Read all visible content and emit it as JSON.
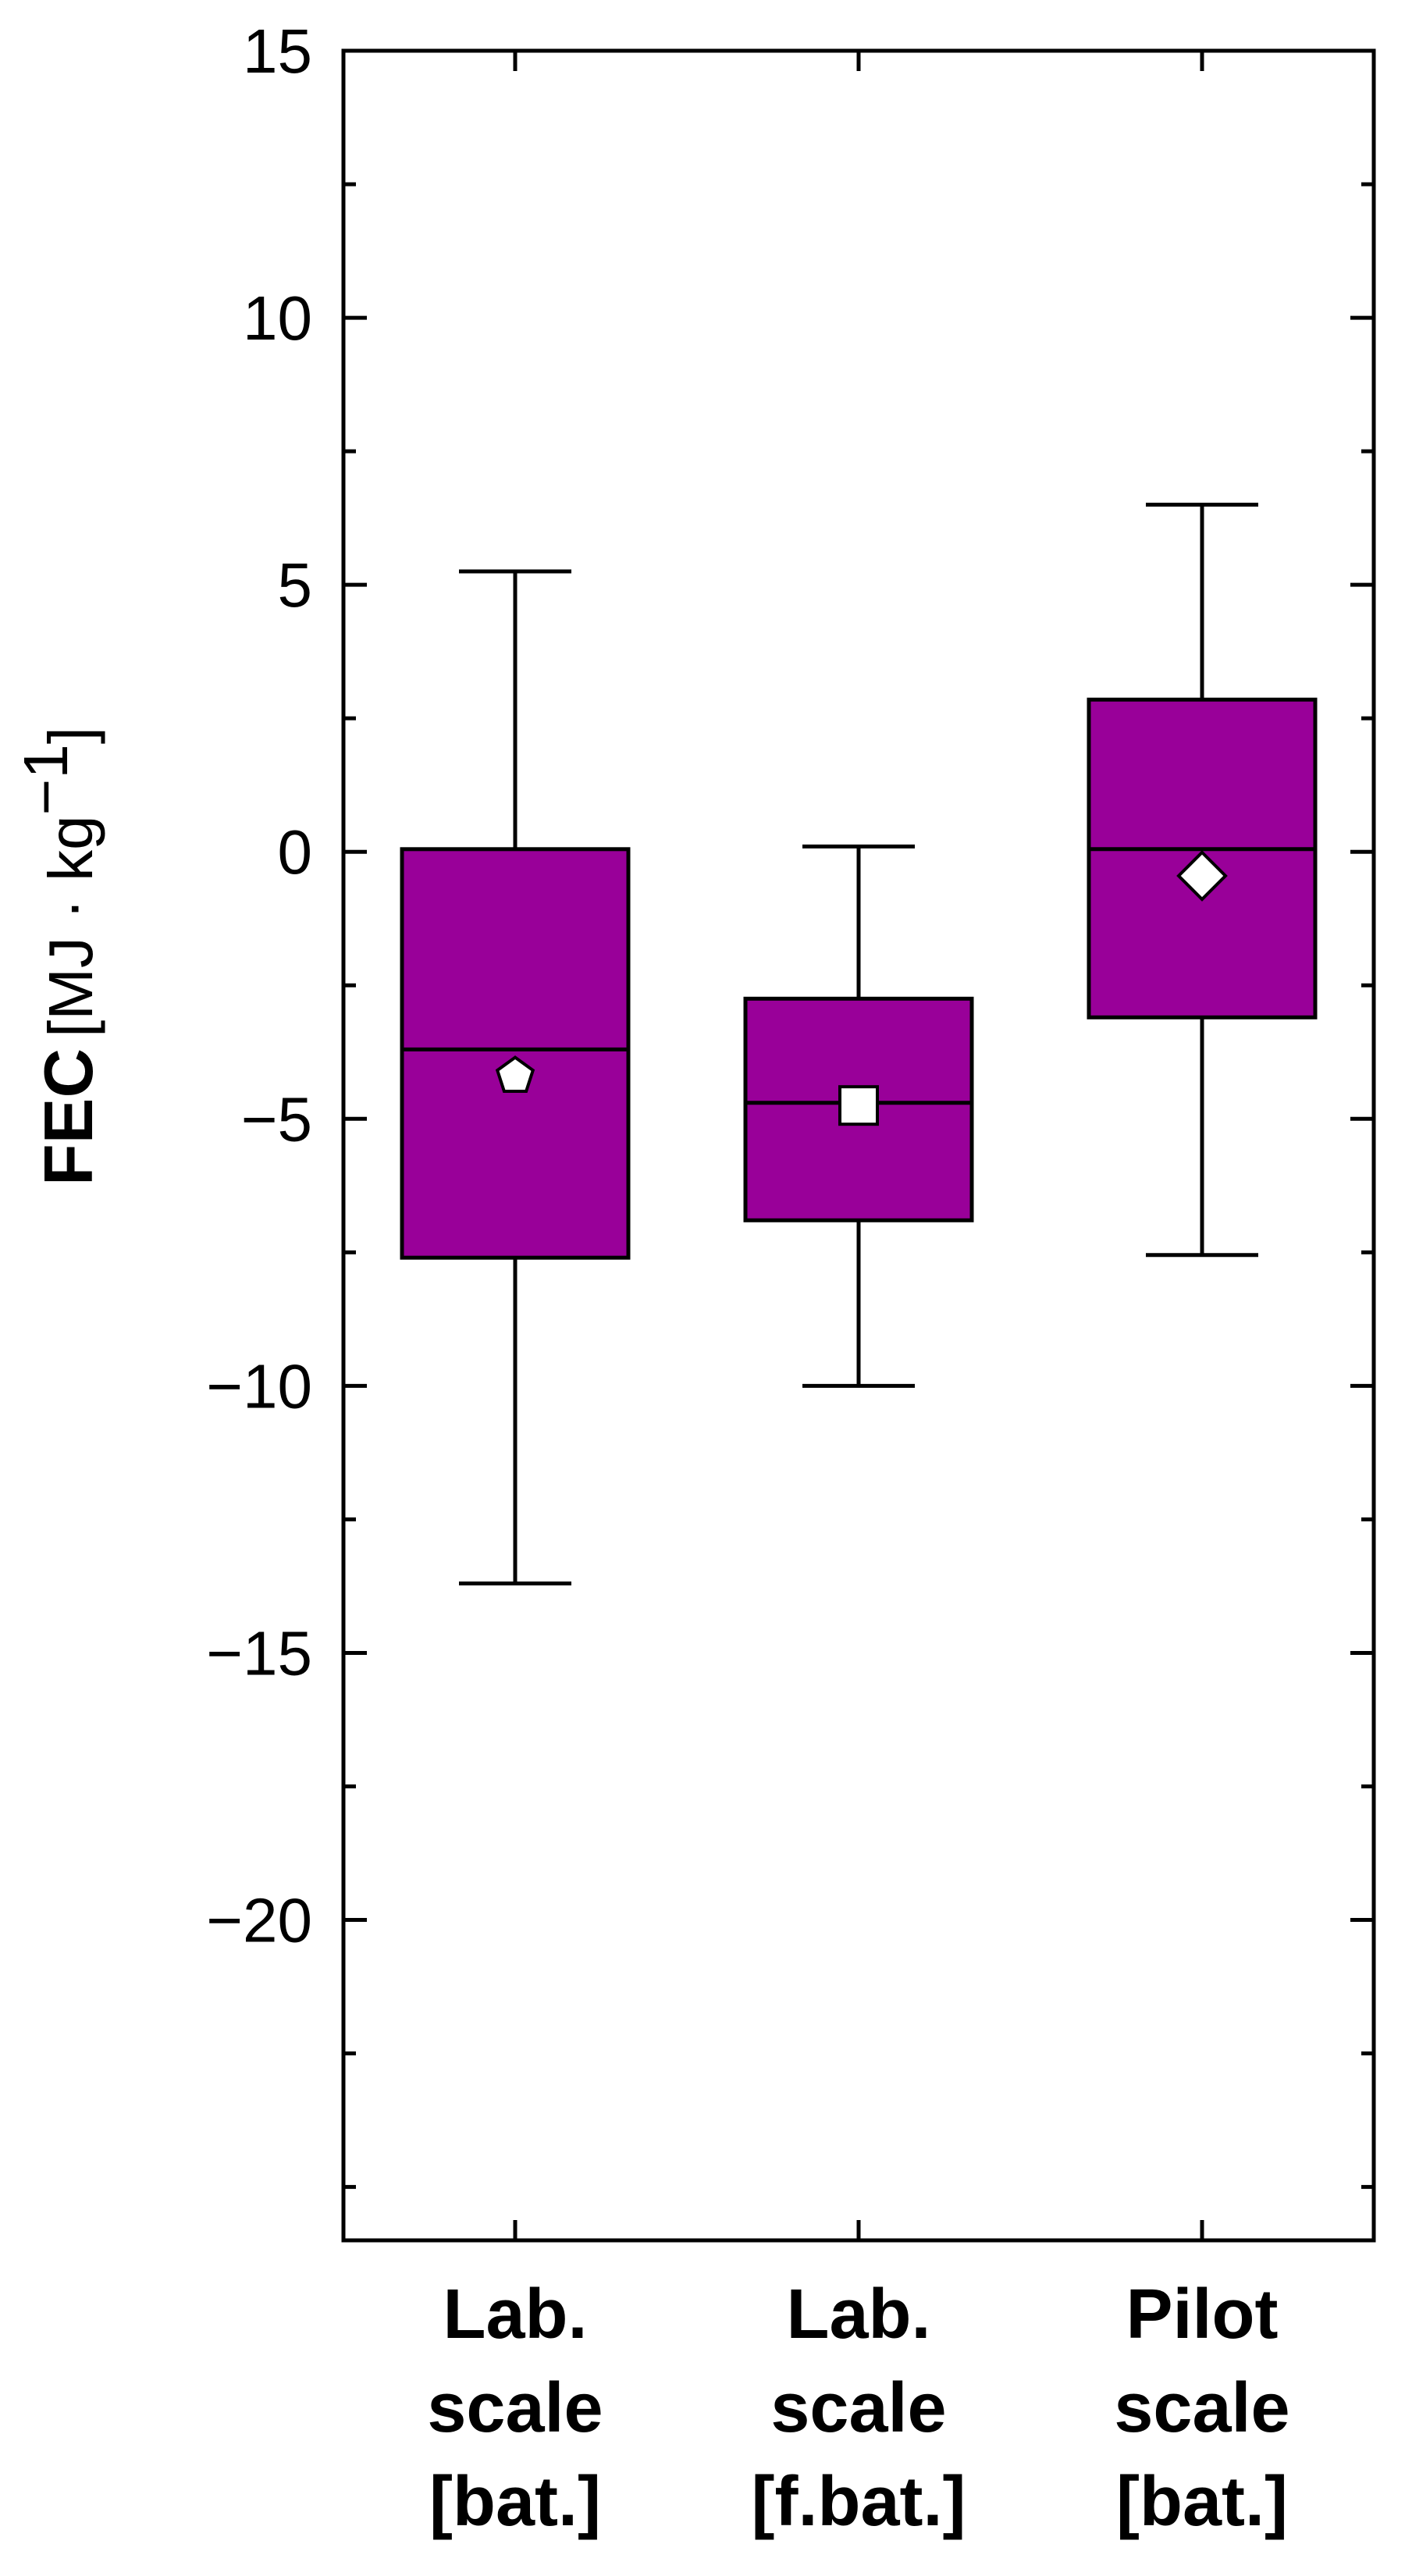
{
  "chart_data": {
    "type": "box",
    "ylabel": {
      "name": "FEC",
      "unit_open": "[MJ · kg",
      "unit_exp": "−1",
      "unit_close": "]"
    },
    "ylim": [
      -26,
      15
    ],
    "yticks": [
      15,
      10,
      5,
      0,
      -5,
      -10,
      -15,
      -20
    ],
    "ytick_labels": [
      "15",
      "10",
      "5",
      "0",
      "−5",
      "−10",
      "−15",
      "−20"
    ],
    "yminor_ticks": [
      12.5,
      7.5,
      2.5,
      -2.5,
      -7.5,
      -12.5,
      -17.5,
      -22.5,
      -25
    ],
    "grid": false,
    "box_color": "#990099",
    "categories": [
      {
        "lines": [
          "Lab.",
          "scale",
          "[bat.]"
        ]
      },
      {
        "lines": [
          "Lab.",
          "scale",
          "[f.bat.]"
        ]
      },
      {
        "lines": [
          "Pilot",
          "scale",
          "[bat.]"
        ]
      }
    ],
    "boxes": [
      {
        "whisker_low": -13.7,
        "q1": -7.6,
        "median": -3.7,
        "q3": 0.05,
        "whisker_high": 5.25,
        "mean": -4.2,
        "marker": "pentagon"
      },
      {
        "whisker_low": -10.0,
        "q1": -6.9,
        "median": -4.7,
        "q3": -2.75,
        "whisker_high": 0.1,
        "mean": -4.75,
        "marker": "square"
      },
      {
        "whisker_low": -7.55,
        "q1": -3.1,
        "median": 0.05,
        "q3": 2.85,
        "whisker_high": 6.5,
        "mean": -0.45,
        "marker": "diamond"
      }
    ]
  }
}
